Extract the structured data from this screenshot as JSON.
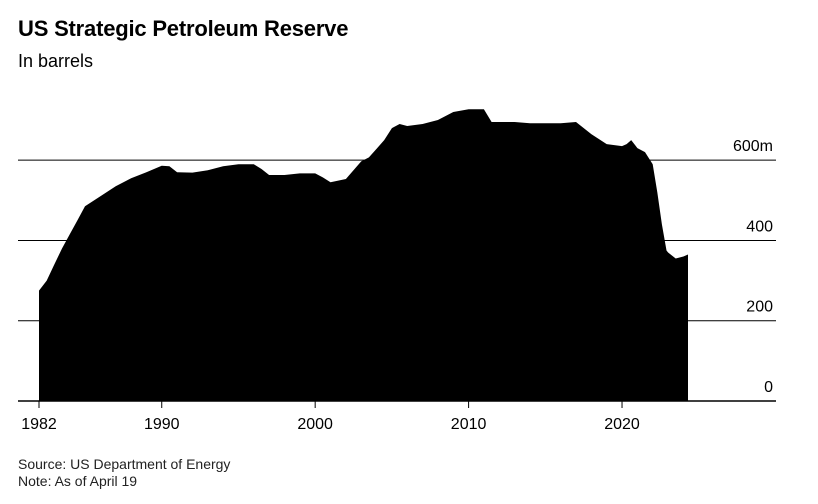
{
  "chart_data": {
    "type": "area",
    "title": "US Strategic Petroleum Reserve",
    "subtitle": "In barrels",
    "ylim": [
      0,
      720
    ],
    "xlim": [
      1982,
      2024.3
    ],
    "yticks": [
      {
        "value": 0,
        "label": "0"
      },
      {
        "value": 200,
        "label": "200"
      },
      {
        "value": 400,
        "label": "400"
      },
      {
        "value": 600,
        "label": "600m"
      }
    ],
    "xticks": [
      {
        "value": 1982,
        "label": "1982"
      },
      {
        "value": 1990,
        "label": "1990"
      },
      {
        "value": 2000,
        "label": "2000"
      },
      {
        "value": 2010,
        "label": "2010"
      },
      {
        "value": 2020,
        "label": "2020"
      }
    ],
    "grid": true,
    "series": [
      {
        "x": [
          1982,
          1982.5,
          1983,
          1983.5,
          1984,
          1984.5,
          1985,
          1986,
          1987,
          1988,
          1989,
          1990,
          1990.5,
          1991,
          1992,
          1993,
          1994,
          1995,
          1996,
          1996.5,
          1997,
          1998,
          1999,
          2000,
          2000.5,
          2001,
          2002,
          2003,
          2003.5,
          2004,
          2004.5,
          2005,
          2005.5,
          2006,
          2007,
          2008,
          2009,
          2010,
          2011,
          2011.5,
          2012,
          2013,
          2014,
          2015,
          2016,
          2017,
          2018,
          2019,
          2020,
          2020.3,
          2020.6,
          2021,
          2021.5,
          2022,
          2022.3,
          2022.6,
          2022.9,
          2023,
          2023.5,
          2024,
          2024.3
        ],
        "values": [
          275,
          300,
          340,
          380,
          415,
          450,
          485,
          510,
          535,
          555,
          570,
          586,
          585,
          570,
          569,
          575,
          585,
          590,
          590,
          578,
          563,
          563,
          567,
          567,
          557,
          545,
          553,
          597,
          607,
          628,
          650,
          680,
          690,
          685,
          690,
          700,
          720,
          727,
          727,
          695,
          695,
          695,
          692,
          692,
          692,
          695,
          665,
          640,
          635,
          640,
          650,
          630,
          620,
          590,
          520,
          440,
          375,
          370,
          355,
          360,
          365
        ]
      }
    ],
    "annotations": [
      "Source: US Department of Energy",
      "Note: As of April 19"
    ]
  },
  "colors": {
    "area": "#000000",
    "grid": "#000000",
    "text": "#000000"
  }
}
